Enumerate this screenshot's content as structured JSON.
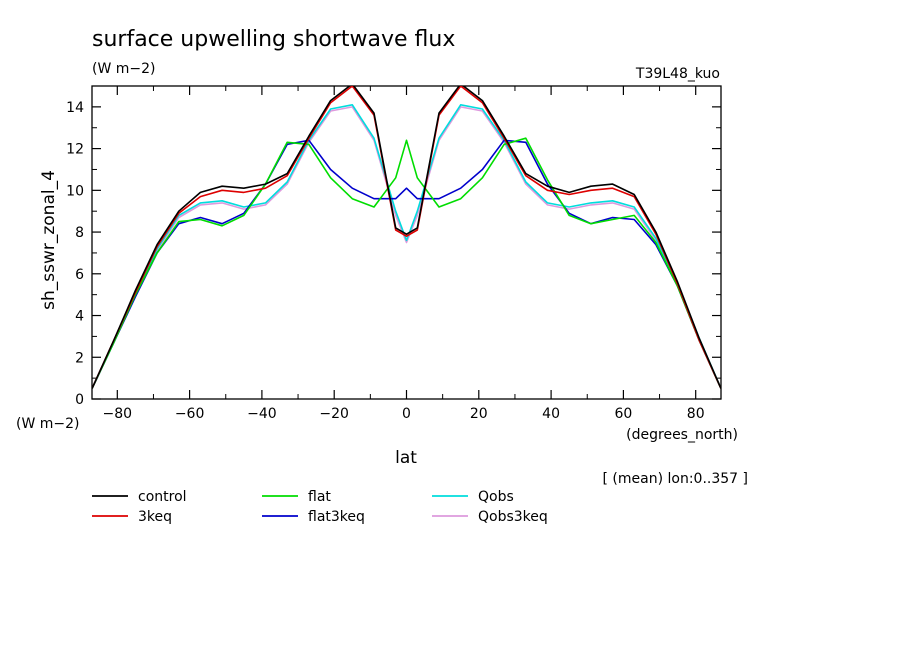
{
  "chart_data": {
    "type": "line",
    "title": "surface upwelling shortwave flux",
    "units": "(W m−2)",
    "experiment": "T39L48_kuo",
    "xlabel": "lat",
    "xunits": "(degrees_north)",
    "ylabel": "sh_sswr_zonal_4",
    "yunits": "(W m−2)",
    "footnote": "[ (mean) lon:0..357 ]",
    "xlim": [
      -87,
      87
    ],
    "ylim": [
      0,
      15
    ],
    "xticks": [
      "−80",
      "−60",
      "−40",
      "−20",
      "0",
      "20",
      "40",
      "60",
      "80"
    ],
    "yticks": [
      "0",
      "2",
      "4",
      "6",
      "8",
      "10",
      "12",
      "14"
    ],
    "grid": false,
    "legend_position": "bottom",
    "x": [
      -87,
      -81,
      -75,
      -69,
      -63,
      -57,
      -51,
      -45,
      -39,
      -33,
      -27,
      -21,
      -15,
      -9,
      -3,
      0,
      3,
      9,
      15,
      21,
      27,
      33,
      39,
      45,
      51,
      57,
      63,
      69,
      75,
      81,
      87
    ],
    "series": [
      {
        "name": "control",
        "color": "#000000",
        "values": [
          0.5,
          2.8,
          5.2,
          7.4,
          9.0,
          9.9,
          10.2,
          10.1,
          10.3,
          10.8,
          12.6,
          14.3,
          15.1,
          13.7,
          8.2,
          7.9,
          8.2,
          13.7,
          15.1,
          14.3,
          12.6,
          10.8,
          10.2,
          9.9,
          10.2,
          10.3,
          9.8,
          8.0,
          5.6,
          2.9,
          0.5
        ]
      },
      {
        "name": "3keq",
        "color": "#dd0000",
        "values": [
          0.5,
          2.8,
          5.1,
          7.3,
          8.9,
          9.7,
          10.0,
          9.9,
          10.1,
          10.7,
          12.5,
          14.2,
          15.0,
          13.6,
          8.1,
          7.8,
          8.1,
          13.6,
          15.0,
          14.2,
          12.5,
          10.7,
          10.0,
          9.8,
          10.0,
          10.1,
          9.7,
          7.9,
          5.5,
          2.8,
          0.5
        ]
      },
      {
        "name": "flat",
        "color": "#00dd00",
        "values": [
          0.5,
          2.7,
          5.0,
          7.0,
          8.5,
          8.6,
          8.3,
          8.8,
          10.3,
          12.3,
          12.2,
          10.6,
          9.6,
          9.2,
          10.6,
          12.4,
          10.6,
          9.2,
          9.6,
          10.6,
          12.2,
          12.5,
          10.5,
          8.8,
          8.4,
          8.6,
          8.8,
          7.5,
          5.4,
          2.8,
          0.5
        ]
      },
      {
        "name": "flat3keq",
        "color": "#0000cc",
        "values": [
          0.5,
          2.7,
          4.9,
          7.0,
          8.4,
          8.7,
          8.4,
          8.9,
          10.3,
          12.2,
          12.4,
          11.0,
          10.1,
          9.6,
          9.6,
          10.1,
          9.6,
          9.6,
          10.1,
          11.0,
          12.4,
          12.3,
          10.3,
          8.9,
          8.4,
          8.7,
          8.6,
          7.4,
          5.4,
          2.8,
          0.5
        ]
      },
      {
        "name": "Qobs",
        "color": "#00dddd",
        "values": [
          0.5,
          2.7,
          5.0,
          7.2,
          8.8,
          9.4,
          9.5,
          9.2,
          9.4,
          10.4,
          12.4,
          13.9,
          14.1,
          12.5,
          9.0,
          7.6,
          9.0,
          12.5,
          14.1,
          13.9,
          12.4,
          10.4,
          9.4,
          9.2,
          9.4,
          9.5,
          9.2,
          7.7,
          5.5,
          2.9,
          0.5
        ]
      },
      {
        "name": "Qobs3keq",
        "color": "#dd99dd",
        "values": [
          0.5,
          2.7,
          5.0,
          7.1,
          8.7,
          9.3,
          9.4,
          9.1,
          9.3,
          10.3,
          12.3,
          13.8,
          14.0,
          12.4,
          8.8,
          7.5,
          8.8,
          12.4,
          14.0,
          13.8,
          12.3,
          10.3,
          9.3,
          9.1,
          9.3,
          9.4,
          9.1,
          7.6,
          5.4,
          2.8,
          0.5
        ]
      }
    ]
  }
}
